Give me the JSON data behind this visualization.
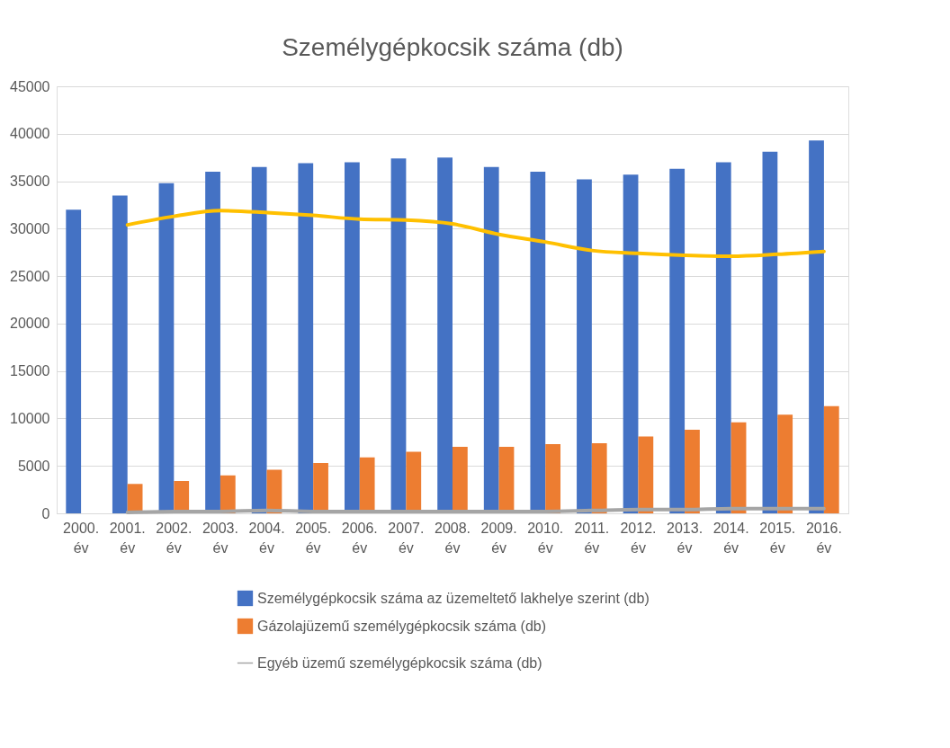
{
  "chart_data": {
    "type": "bar",
    "title": "Személygépkocsik száma (db)",
    "categories": [
      "2000. év",
      "2001. év",
      "2002. év",
      "2003. év",
      "2004. év",
      "2005. év",
      "2006. év",
      "2007. év",
      "2008. év",
      "2009. év",
      "2010. év",
      "2011. év",
      "2012. év",
      "2013. év",
      "2014. év",
      "2015. év",
      "2016. év"
    ],
    "series": [
      {
        "name": "Személygépkocsik száma az üzemeltető lakhelye szerint (db)",
        "color": "#4472c4",
        "values": [
          32000,
          33500,
          34800,
          36000,
          36500,
          36900,
          37000,
          37400,
          37500,
          36500,
          36000,
          35200,
          35700,
          36300,
          37000,
          38100,
          39300
        ]
      },
      {
        "name": "Gázolajüzemű személygépkocsik száma (db)",
        "color": "#ed7d31",
        "values": [
          null,
          3100,
          3400,
          4000,
          4600,
          5300,
          5900,
          6500,
          7000,
          7000,
          7300,
          7400,
          8100,
          8800,
          9600,
          10400,
          11300
        ]
      },
      {
        "name": "Egyéb üzemű személygépkocsik száma (db)",
        "type": "line",
        "color": "#a5a5a5",
        "values": [
          null,
          100,
          200,
          200,
          300,
          200,
          200,
          200,
          200,
          200,
          200,
          300,
          400,
          400,
          500,
          500,
          500
        ]
      },
      {
        "type": "line",
        "color": "#ffc000",
        "values": [
          null,
          30400,
          31300,
          31900,
          31700,
          31400,
          31000,
          30900,
          30500,
          29400,
          28600,
          27700,
          27400,
          27200,
          27100,
          27300,
          27600
        ]
      }
    ],
    "ylim": [
      0,
      45000
    ],
    "yticks": [
      0,
      5000,
      10000,
      15000,
      20000,
      25000,
      30000,
      35000,
      40000,
      45000
    ],
    "grid": "y",
    "legend": "bottom",
    "marker": "none",
    "line_style": "solid"
  }
}
